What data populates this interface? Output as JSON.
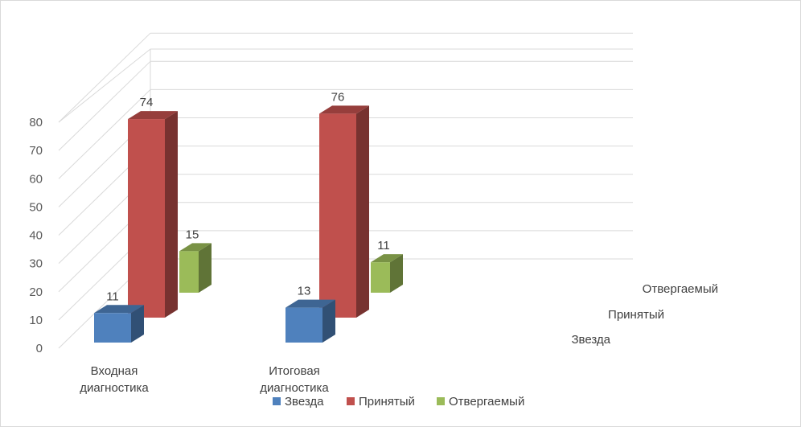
{
  "chart_data": {
    "type": "bar",
    "title": "",
    "categories": [
      "Входная диагностика",
      "Итоговая диагностика"
    ],
    "category_lines": [
      [
        "Входная",
        "диагностика"
      ],
      [
        "Итоговая",
        "диагностика"
      ]
    ],
    "series": [
      {
        "name": "Звезда",
        "values": [
          11,
          13
        ],
        "color": "#4f81bd"
      },
      {
        "name": "Принятый",
        "values": [
          74,
          76
        ],
        "color": "#c0504d"
      },
      {
        "name": "Отвергаемый",
        "values": [
          15,
          11
        ],
        "color": "#9bbb59"
      }
    ],
    "ylim": [
      0,
      80
    ],
    "yticks": [
      0,
      10,
      20,
      30,
      40,
      50,
      60,
      70,
      80
    ],
    "grid": true,
    "legend": "bottom",
    "depth_axis_labels": [
      "Отвергаемый",
      "Принятый",
      "Звезда"
    ]
  }
}
